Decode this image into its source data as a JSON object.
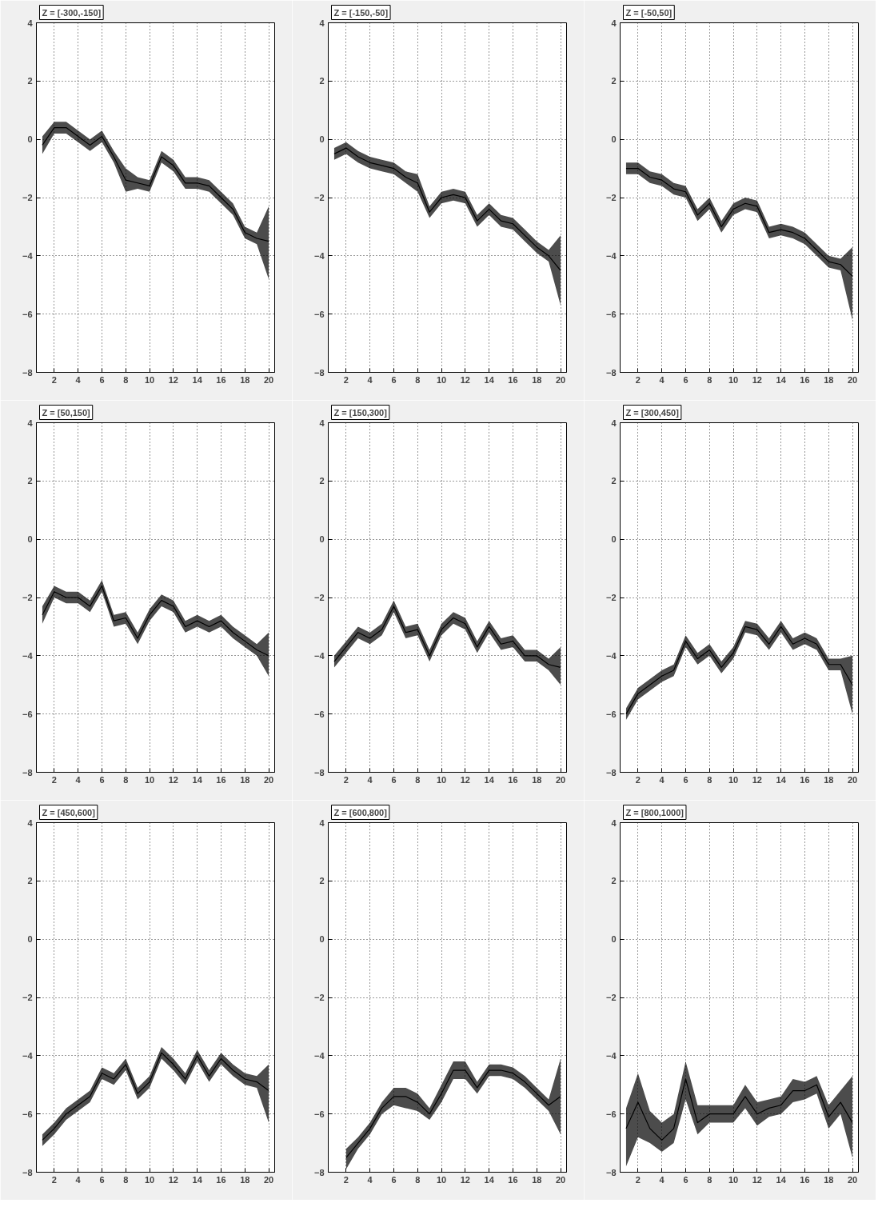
{
  "chart_data": [
    {
      "type": "line",
      "title": "Z = [-300,-150]",
      "x": [
        1,
        2,
        3,
        4,
        5,
        6,
        7,
        8,
        9,
        10,
        11,
        12,
        13,
        14,
        15,
        16,
        17,
        18,
        19,
        20
      ],
      "xlim": [
        0.5,
        20.5
      ],
      "xticks": [
        2,
        4,
        6,
        8,
        10,
        12,
        14,
        16,
        18,
        20
      ],
      "ylim": [
        -8,
        4
      ],
      "yticks": [
        -8,
        -6,
        -4,
        -2,
        0,
        2,
        4
      ],
      "grid": true,
      "marker": "none",
      "line_style": "solid",
      "series": [
        {
          "color": "#000000",
          "values": [
            -0.2,
            0.4,
            0.4,
            0.1,
            -0.2,
            0.1,
            -0.6,
            -1.4,
            -1.5,
            -1.6,
            -0.6,
            -0.9,
            -1.5,
            -1.5,
            -1.6,
            -2.0,
            -2.4,
            -3.2,
            -3.4,
            -3.5
          ],
          "lower": [
            -0.5,
            0.2,
            0.2,
            -0.1,
            -0.4,
            -0.1,
            -0.8,
            -1.8,
            -1.7,
            -1.8,
            -0.8,
            -1.1,
            -1.7,
            -1.7,
            -1.8,
            -2.2,
            -2.6,
            -3.4,
            -3.6,
            -4.8
          ],
          "upper": [
            0.1,
            0.6,
            0.6,
            0.3,
            0.0,
            0.3,
            -0.4,
            -1.0,
            -1.3,
            -1.4,
            -0.4,
            -0.7,
            -1.3,
            -1.3,
            -1.4,
            -1.8,
            -2.2,
            -3.0,
            -3.2,
            -2.3
          ]
        }
      ]
    },
    {
      "type": "line",
      "title": "Z = [-150,-50]",
      "x": [
        1,
        2,
        3,
        4,
        5,
        6,
        7,
        8,
        9,
        10,
        11,
        12,
        13,
        14,
        15,
        16,
        17,
        18,
        19,
        20
      ],
      "xlim": [
        0.5,
        20.5
      ],
      "xticks": [
        2,
        4,
        6,
        8,
        10,
        12,
        14,
        16,
        18,
        20
      ],
      "ylim": [
        -8,
        4
      ],
      "yticks": [
        -8,
        -6,
        -4,
        -2,
        0,
        2,
        4
      ],
      "grid": true,
      "marker": "none",
      "line_style": "solid",
      "series": [
        {
          "color": "#000000",
          "values": [
            -0.5,
            -0.3,
            -0.6,
            -0.8,
            -0.9,
            -1.0,
            -1.3,
            -1.5,
            -2.5,
            -2.0,
            -1.9,
            -2.0,
            -2.8,
            -2.4,
            -2.8,
            -2.9,
            -3.3,
            -3.7,
            -4.0,
            -4.5
          ],
          "lower": [
            -0.7,
            -0.5,
            -0.8,
            -1.0,
            -1.1,
            -1.2,
            -1.5,
            -1.8,
            -2.7,
            -2.2,
            -2.1,
            -2.2,
            -3.0,
            -2.6,
            -3.0,
            -3.1,
            -3.5,
            -3.9,
            -4.2,
            -5.7
          ],
          "upper": [
            -0.3,
            -0.1,
            -0.4,
            -0.6,
            -0.7,
            -0.8,
            -1.1,
            -1.2,
            -2.3,
            -1.8,
            -1.7,
            -1.8,
            -2.6,
            -2.2,
            -2.6,
            -2.7,
            -3.1,
            -3.5,
            -3.8,
            -3.3
          ]
        }
      ]
    },
    {
      "type": "line",
      "title": "Z = [-50,50]",
      "x": [
        1,
        2,
        3,
        4,
        5,
        6,
        7,
        8,
        9,
        10,
        11,
        12,
        13,
        14,
        15,
        16,
        17,
        18,
        19,
        20
      ],
      "xlim": [
        0.5,
        20.5
      ],
      "xticks": [
        2,
        4,
        6,
        8,
        10,
        12,
        14,
        16,
        18,
        20
      ],
      "ylim": [
        -8,
        4
      ],
      "yticks": [
        -8,
        -6,
        -4,
        -2,
        0,
        2,
        4
      ],
      "grid": true,
      "marker": "none",
      "line_style": "solid",
      "series": [
        {
          "color": "#000000",
          "values": [
            -1.0,
            -1.0,
            -1.3,
            -1.4,
            -1.7,
            -1.8,
            -2.6,
            -2.2,
            -3.0,
            -2.4,
            -2.2,
            -2.3,
            -3.2,
            -3.1,
            -3.2,
            -3.4,
            -3.8,
            -4.2,
            -4.3,
            -4.7
          ],
          "lower": [
            -1.2,
            -1.2,
            -1.5,
            -1.6,
            -1.9,
            -2.0,
            -2.8,
            -2.4,
            -3.2,
            -2.6,
            -2.4,
            -2.5,
            -3.4,
            -3.3,
            -3.4,
            -3.6,
            -4.0,
            -4.4,
            -4.5,
            -6.2
          ],
          "upper": [
            -0.8,
            -0.8,
            -1.1,
            -1.2,
            -1.5,
            -1.6,
            -2.4,
            -2.0,
            -2.8,
            -2.2,
            -2.0,
            -2.1,
            -3.0,
            -2.9,
            -3.0,
            -3.2,
            -3.6,
            -4.0,
            -4.1,
            -3.7
          ]
        }
      ]
    },
    {
      "type": "line",
      "title": "Z = [50,150]",
      "x": [
        1,
        2,
        3,
        4,
        5,
        6,
        7,
        8,
        9,
        10,
        11,
        12,
        13,
        14,
        15,
        16,
        17,
        18,
        19,
        20
      ],
      "xlim": [
        0.5,
        20.5
      ],
      "xticks": [
        2,
        4,
        6,
        8,
        10,
        12,
        14,
        16,
        18,
        20
      ],
      "ylim": [
        -8,
        4
      ],
      "yticks": [
        -8,
        -6,
        -4,
        -2,
        0,
        2,
        4
      ],
      "grid": true,
      "marker": "none",
      "line_style": "solid",
      "series": [
        {
          "color": "#000000",
          "values": [
            -2.6,
            -1.8,
            -2.0,
            -2.0,
            -2.3,
            -1.6,
            -2.8,
            -2.7,
            -3.4,
            -2.6,
            -2.1,
            -2.3,
            -3.0,
            -2.8,
            -3.0,
            -2.8,
            -3.2,
            -3.5,
            -3.8,
            -4.0
          ],
          "lower": [
            -2.9,
            -2.0,
            -2.2,
            -2.2,
            -2.5,
            -1.8,
            -3.0,
            -2.9,
            -3.6,
            -2.8,
            -2.3,
            -2.5,
            -3.2,
            -3.0,
            -3.2,
            -3.0,
            -3.4,
            -3.7,
            -4.0,
            -4.7
          ],
          "upper": [
            -2.3,
            -1.6,
            -1.8,
            -1.8,
            -2.1,
            -1.4,
            -2.6,
            -2.5,
            -3.2,
            -2.4,
            -1.9,
            -2.1,
            -2.8,
            -2.6,
            -2.8,
            -2.6,
            -3.0,
            -3.3,
            -3.6,
            -3.2
          ]
        }
      ]
    },
    {
      "type": "line",
      "title": "Z = [150,300]",
      "x": [
        1,
        2,
        3,
        4,
        5,
        6,
        7,
        8,
        9,
        10,
        11,
        12,
        13,
        14,
        15,
        16,
        17,
        18,
        19,
        20
      ],
      "xlim": [
        0.5,
        20.5
      ],
      "xticks": [
        2,
        4,
        6,
        8,
        10,
        12,
        14,
        16,
        18,
        20
      ],
      "ylim": [
        -8,
        4
      ],
      "yticks": [
        -8,
        -6,
        -4,
        -2,
        0,
        2,
        4
      ],
      "grid": true,
      "marker": "none",
      "line_style": "solid",
      "series": [
        {
          "color": "#000000",
          "values": [
            -4.2,
            -3.7,
            -3.2,
            -3.4,
            -3.1,
            -2.3,
            -3.2,
            -3.1,
            -4.0,
            -3.1,
            -2.7,
            -2.9,
            -3.7,
            -3.0,
            -3.6,
            -3.5,
            -4.0,
            -4.0,
            -4.3,
            -4.4
          ],
          "lower": [
            -4.4,
            -3.9,
            -3.4,
            -3.6,
            -3.3,
            -2.5,
            -3.4,
            -3.3,
            -4.2,
            -3.3,
            -2.9,
            -3.1,
            -3.9,
            -3.2,
            -3.8,
            -3.7,
            -4.2,
            -4.2,
            -4.5,
            -5.0
          ],
          "upper": [
            -4.0,
            -3.5,
            -3.0,
            -3.2,
            -2.9,
            -2.1,
            -3.0,
            -2.9,
            -3.8,
            -2.9,
            -2.5,
            -2.7,
            -3.5,
            -2.8,
            -3.4,
            -3.3,
            -3.8,
            -3.8,
            -4.1,
            -3.7
          ]
        }
      ]
    },
    {
      "type": "line",
      "title": "Z = [300,450]",
      "x": [
        1,
        2,
        3,
        4,
        5,
        6,
        7,
        8,
        9,
        10,
        11,
        12,
        13,
        14,
        15,
        16,
        17,
        18,
        19,
        20
      ],
      "xlim": [
        0.5,
        20.5
      ],
      "xticks": [
        2,
        4,
        6,
        8,
        10,
        12,
        14,
        16,
        18,
        20
      ],
      "ylim": [
        -8,
        4
      ],
      "yticks": [
        -8,
        -6,
        -4,
        -2,
        0,
        2,
        4
      ],
      "grid": true,
      "marker": "none",
      "line_style": "solid",
      "series": [
        {
          "color": "#000000",
          "values": [
            -6.0,
            -5.3,
            -5.0,
            -4.7,
            -4.5,
            -3.5,
            -4.1,
            -3.8,
            -4.4,
            -3.9,
            -3.0,
            -3.1,
            -3.6,
            -3.0,
            -3.6,
            -3.4,
            -3.6,
            -4.3,
            -4.3,
            -5.0
          ],
          "lower": [
            -6.2,
            -5.5,
            -5.2,
            -4.9,
            -4.7,
            -3.7,
            -4.3,
            -4.0,
            -4.6,
            -4.1,
            -3.2,
            -3.3,
            -3.8,
            -3.2,
            -3.8,
            -3.6,
            -3.8,
            -4.5,
            -4.5,
            -6.0
          ],
          "upper": [
            -5.8,
            -5.1,
            -4.8,
            -4.5,
            -4.3,
            -3.3,
            -3.9,
            -3.6,
            -4.2,
            -3.7,
            -2.8,
            -2.9,
            -3.4,
            -2.8,
            -3.4,
            -3.2,
            -3.4,
            -4.1,
            -4.1,
            -4.0
          ]
        }
      ]
    },
    {
      "type": "line",
      "title": "Z = [450,600]",
      "x": [
        1,
        2,
        3,
        4,
        5,
        6,
        7,
        8,
        9,
        10,
        11,
        12,
        13,
        14,
        15,
        16,
        17,
        18,
        19,
        20
      ],
      "xlim": [
        0.5,
        20.5
      ],
      "xticks": [
        2,
        4,
        6,
        8,
        10,
        12,
        14,
        16,
        18,
        20
      ],
      "ylim": [
        -8,
        4
      ],
      "yticks": [
        -8,
        -6,
        -4,
        -2,
        0,
        2,
        4
      ],
      "grid": true,
      "marker": "none",
      "line_style": "solid",
      "series": [
        {
          "color": "#000000",
          "values": [
            -6.9,
            -6.5,
            -6.0,
            -5.7,
            -5.4,
            -4.6,
            -4.8,
            -4.3,
            -5.3,
            -4.9,
            -3.9,
            -4.3,
            -4.8,
            -4.0,
            -4.7,
            -4.1,
            -4.5,
            -4.8,
            -4.9,
            -5.2
          ],
          "lower": [
            -7.1,
            -6.7,
            -6.2,
            -5.9,
            -5.6,
            -4.8,
            -5.0,
            -4.5,
            -5.5,
            -5.1,
            -4.1,
            -4.5,
            -5.0,
            -4.2,
            -4.9,
            -4.3,
            -4.7,
            -5.0,
            -5.1,
            -6.3
          ],
          "upper": [
            -6.7,
            -6.3,
            -5.8,
            -5.5,
            -5.2,
            -4.4,
            -4.6,
            -4.1,
            -5.1,
            -4.7,
            -3.7,
            -4.1,
            -4.6,
            -3.8,
            -4.5,
            -3.9,
            -4.3,
            -4.6,
            -4.7,
            -4.3
          ]
        }
      ]
    },
    {
      "type": "line",
      "title": "Z = [600,800]",
      "xlim": [
        0.5,
        20.5
      ],
      "xticks": [
        2,
        4,
        6,
        8,
        10,
        12,
        14,
        16,
        18,
        20
      ],
      "ylim": [
        -8,
        4
      ],
      "yticks": [
        -8,
        -6,
        -4,
        -2,
        0,
        2,
        4
      ],
      "grid": true,
      "marker": "none",
      "line_style": "solid",
      "series": [
        {
          "color": "#000000",
          "x": [
            2,
            3,
            4,
            5,
            6,
            7,
            8,
            9,
            10,
            11,
            12,
            13,
            14,
            15,
            16,
            17,
            18,
            19,
            20
          ],
          "values": [
            -7.5,
            -7.0,
            -6.5,
            -5.8,
            -5.4,
            -5.4,
            -5.6,
            -6.0,
            -5.3,
            -4.5,
            -4.5,
            -5.1,
            -4.5,
            -4.5,
            -4.6,
            -4.9,
            -5.3,
            -5.7,
            -5.4
          ],
          "lower": [
            -7.9,
            -7.2,
            -6.7,
            -6.0,
            -5.7,
            -5.8,
            -5.9,
            -6.2,
            -5.6,
            -4.8,
            -4.8,
            -5.3,
            -4.7,
            -4.7,
            -4.8,
            -5.1,
            -5.5,
            -5.9,
            -6.7
          ],
          "upper": [
            -7.2,
            -6.8,
            -6.3,
            -5.6,
            -5.1,
            -5.1,
            -5.3,
            -5.8,
            -5.0,
            -4.2,
            -4.2,
            -4.9,
            -4.3,
            -4.3,
            -4.4,
            -4.7,
            -5.1,
            -5.5,
            -4.1
          ]
        }
      ]
    },
    {
      "type": "line",
      "title": "Z = [800,1000]",
      "x": [
        1,
        2,
        3,
        4,
        5,
        6,
        7,
        8,
        9,
        10,
        11,
        12,
        13,
        14,
        15,
        16,
        17,
        18,
        19,
        20
      ],
      "xlim": [
        0.5,
        20.5
      ],
      "xticks": [
        2,
        4,
        6,
        8,
        10,
        12,
        14,
        16,
        18,
        20
      ],
      "ylim": [
        -8,
        4
      ],
      "yticks": [
        -8,
        -6,
        -4,
        -2,
        0,
        2,
        4
      ],
      "grid": true,
      "marker": "none",
      "line_style": "solid",
      "series": [
        {
          "color": "#000000",
          "values": [
            -6.5,
            -5.6,
            -6.5,
            -6.9,
            -6.5,
            -4.8,
            -6.3,
            -6.0,
            -6.0,
            -6.0,
            -5.4,
            -6.0,
            -5.8,
            -5.7,
            -5.2,
            -5.2,
            -5.0,
            -6.1,
            -5.6,
            -6.3
          ],
          "lower": [
            -7.8,
            -6.8,
            -7.0,
            -7.3,
            -7.0,
            -5.5,
            -6.7,
            -6.3,
            -6.3,
            -6.3,
            -5.8,
            -6.4,
            -6.1,
            -6.0,
            -5.6,
            -5.5,
            -5.3,
            -6.5,
            -6.0,
            -7.5
          ],
          "upper": [
            -5.8,
            -4.6,
            -5.9,
            -6.3,
            -6.0,
            -4.2,
            -5.7,
            -5.7,
            -5.7,
            -5.7,
            -5.0,
            -5.6,
            -5.5,
            -5.4,
            -4.8,
            -4.9,
            -4.7,
            -5.7,
            -5.2,
            -4.7
          ]
        }
      ]
    }
  ]
}
